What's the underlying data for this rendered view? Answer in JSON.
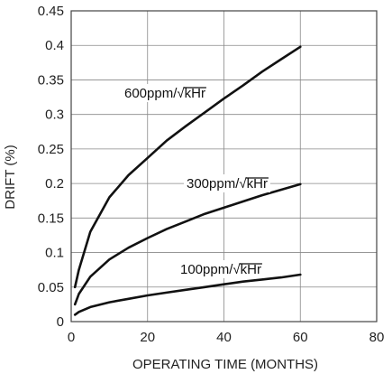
{
  "chart_data": {
    "type": "line",
    "xlabel": "OPERATING TIME (MONTHS)",
    "ylabel": "DRIFT (%)",
    "xlim": [
      0,
      80
    ],
    "ylim": [
      0,
      0.45
    ],
    "xticks": [
      0,
      20,
      40,
      60,
      80
    ],
    "yticks": [
      0,
      0.05,
      0.1,
      0.15,
      0.2,
      0.25,
      0.3,
      0.35,
      0.4,
      0.45
    ],
    "ytick_labels": [
      "0",
      "0.05",
      "0.1",
      "0.15",
      "0.2",
      "0.25",
      "0.3",
      "0.35",
      "0.4",
      "0.45"
    ],
    "xtick_labels": [
      "0",
      "20",
      "40",
      "60",
      "80"
    ],
    "grid": true,
    "colors": {
      "line": "#111111",
      "grid": "#888888",
      "frame": "#444444"
    },
    "series": [
      {
        "name": "600ppm/√kHr",
        "label_prefix": "600ppm/",
        "label_root": "kHr",
        "x": [
          1,
          2,
          5,
          10,
          15,
          20,
          25,
          30,
          35,
          40,
          45,
          50,
          55,
          60
        ],
        "values": [
          0.05,
          0.075,
          0.13,
          0.18,
          0.212,
          0.237,
          0.262,
          0.283,
          0.303,
          0.323,
          0.342,
          0.362,
          0.38,
          0.398
        ]
      },
      {
        "name": "300ppm/√kHr",
        "label_prefix": "300ppm/",
        "label_root": "kHr",
        "x": [
          1,
          2,
          5,
          10,
          15,
          20,
          25,
          30,
          35,
          40,
          45,
          50,
          55,
          60
        ],
        "values": [
          0.025,
          0.04,
          0.065,
          0.09,
          0.107,
          0.121,
          0.134,
          0.145,
          0.156,
          0.165,
          0.174,
          0.183,
          0.191,
          0.199
        ]
      },
      {
        "name": "100ppm/√kHr",
        "label_prefix": "100ppm/",
        "label_root": "kHr",
        "x": [
          1,
          2,
          5,
          10,
          15,
          20,
          25,
          30,
          35,
          40,
          45,
          50,
          55,
          60
        ],
        "values": [
          0.01,
          0.014,
          0.021,
          0.028,
          0.033,
          0.038,
          0.042,
          0.046,
          0.05,
          0.054,
          0.058,
          0.061,
          0.064,
          0.068
        ]
      }
    ]
  }
}
